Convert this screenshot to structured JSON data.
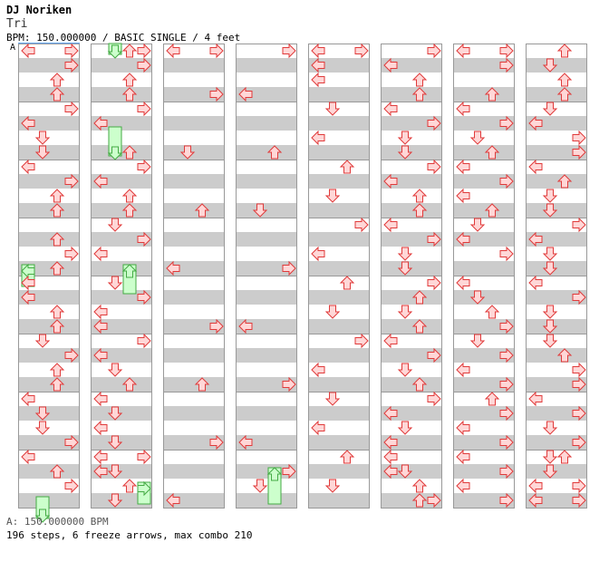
{
  "header": {
    "artist": "DJ Noriken",
    "title": "Tri",
    "meta": "BPM: 150.000000 / BASIC SINGLE / 4 feet",
    "section_marker": "A"
  },
  "footer": {
    "bpm_line": "A: 150.000000 BPM",
    "stats": "196 steps, 6 freeze arrows, max combo 210"
  },
  "colors": {
    "stripe": "#cccccc",
    "grid_line": "#999999",
    "arrow_fill": "#ffd7d7",
    "arrow_stroke": "#e03a3a",
    "freeze_fill": "#ccffcc",
    "freeze_stroke": "#44aa44"
  },
  "chart_data": {
    "type": "step-chart",
    "lanes": [
      "left",
      "down",
      "up",
      "right"
    ],
    "columns": 8,
    "measures_per_column": 8,
    "rows_per_measure": 8,
    "notes": [
      {
        "c": 0,
        "r": 0,
        "lane": "left"
      },
      {
        "c": 0,
        "r": 0,
        "lane": "right"
      },
      {
        "c": 0,
        "r": 2,
        "lane": "right"
      },
      {
        "c": 0,
        "r": 4,
        "lane": "up"
      },
      {
        "c": 0,
        "r": 6,
        "lane": "up"
      },
      {
        "c": 0,
        "r": 8,
        "lane": "right"
      },
      {
        "c": 0,
        "r": 10,
        "lane": "left"
      },
      {
        "c": 0,
        "r": 12,
        "lane": "down"
      },
      {
        "c": 0,
        "r": 14,
        "lane": "down"
      },
      {
        "c": 0,
        "r": 16,
        "lane": "left"
      },
      {
        "c": 0,
        "r": 18,
        "lane": "right"
      },
      {
        "c": 0,
        "r": 20,
        "lane": "up"
      },
      {
        "c": 0,
        "r": 22,
        "lane": "up"
      },
      {
        "c": 0,
        "r": 26,
        "lane": "up"
      },
      {
        "c": 0,
        "r": 28,
        "lane": "right"
      },
      {
        "c": 0,
        "r": 30,
        "lane": "up"
      },
      {
        "c": 0,
        "r": 32,
        "lane": "left"
      },
      {
        "c": 0,
        "r": 34,
        "lane": "left"
      },
      {
        "c": 0,
        "r": 36,
        "lane": "up"
      },
      {
        "c": 0,
        "r": 38,
        "lane": "up"
      },
      {
        "c": 0,
        "r": 40,
        "lane": "down"
      },
      {
        "c": 0,
        "r": 42,
        "lane": "right"
      },
      {
        "c": 0,
        "r": 44,
        "lane": "up"
      },
      {
        "c": 0,
        "r": 46,
        "lane": "up"
      },
      {
        "c": 0,
        "r": 48,
        "lane": "left"
      },
      {
        "c": 0,
        "r": 50,
        "lane": "down"
      },
      {
        "c": 0,
        "r": 52,
        "lane": "down"
      },
      {
        "c": 0,
        "r": 54,
        "lane": "right"
      },
      {
        "c": 0,
        "r": 56,
        "lane": "left"
      },
      {
        "c": 0,
        "r": 58,
        "lane": "up"
      },
      {
        "c": 0,
        "r": 60,
        "lane": "right"
      },
      {
        "c": 1,
        "r": 0,
        "lane": "up"
      },
      {
        "c": 1,
        "r": 0,
        "lane": "right"
      },
      {
        "c": 1,
        "r": 2,
        "lane": "right"
      },
      {
        "c": 1,
        "r": 4,
        "lane": "up"
      },
      {
        "c": 1,
        "r": 6,
        "lane": "up"
      },
      {
        "c": 1,
        "r": 8,
        "lane": "right"
      },
      {
        "c": 1,
        "r": 10,
        "lane": "left"
      },
      {
        "c": 1,
        "r": 14,
        "lane": "up"
      },
      {
        "c": 1,
        "r": 16,
        "lane": "right"
      },
      {
        "c": 1,
        "r": 18,
        "lane": "left"
      },
      {
        "c": 1,
        "r": 20,
        "lane": "up"
      },
      {
        "c": 1,
        "r": 22,
        "lane": "up"
      },
      {
        "c": 1,
        "r": 24,
        "lane": "down"
      },
      {
        "c": 1,
        "r": 26,
        "lane": "right"
      },
      {
        "c": 1,
        "r": 28,
        "lane": "left"
      },
      {
        "c": 1,
        "r": 32,
        "lane": "down"
      },
      {
        "c": 1,
        "r": 34,
        "lane": "right"
      },
      {
        "c": 1,
        "r": 36,
        "lane": "left"
      },
      {
        "c": 1,
        "r": 38,
        "lane": "left"
      },
      {
        "c": 1,
        "r": 40,
        "lane": "right"
      },
      {
        "c": 1,
        "r": 42,
        "lane": "left"
      },
      {
        "c": 1,
        "r": 44,
        "lane": "down"
      },
      {
        "c": 1,
        "r": 46,
        "lane": "up"
      },
      {
        "c": 1,
        "r": 48,
        "lane": "left"
      },
      {
        "c": 1,
        "r": 50,
        "lane": "down"
      },
      {
        "c": 1,
        "r": 52,
        "lane": "left"
      },
      {
        "c": 1,
        "r": 54,
        "lane": "down"
      },
      {
        "c": 1,
        "r": 56,
        "lane": "left"
      },
      {
        "c": 1,
        "r": 56,
        "lane": "right"
      },
      {
        "c": 1,
        "r": 58,
        "lane": "left"
      },
      {
        "c": 1,
        "r": 58,
        "lane": "down"
      },
      {
        "c": 1,
        "r": 60,
        "lane": "up"
      },
      {
        "c": 1,
        "r": 62,
        "lane": "down"
      },
      {
        "c": 2,
        "r": 0,
        "lane": "left"
      },
      {
        "c": 2,
        "r": 0,
        "lane": "right"
      },
      {
        "c": 2,
        "r": 6,
        "lane": "right"
      },
      {
        "c": 2,
        "r": 14,
        "lane": "down"
      },
      {
        "c": 2,
        "r": 22,
        "lane": "up"
      },
      {
        "c": 2,
        "r": 30,
        "lane": "left"
      },
      {
        "c": 2,
        "r": 38,
        "lane": "right"
      },
      {
        "c": 2,
        "r": 46,
        "lane": "up"
      },
      {
        "c": 2,
        "r": 54,
        "lane": "right"
      },
      {
        "c": 2,
        "r": 62,
        "lane": "left"
      },
      {
        "c": 3,
        "r": 0,
        "lane": "right"
      },
      {
        "c": 3,
        "r": 6,
        "lane": "left"
      },
      {
        "c": 3,
        "r": 14,
        "lane": "up"
      },
      {
        "c": 3,
        "r": 22,
        "lane": "down"
      },
      {
        "c": 3,
        "r": 30,
        "lane": "right"
      },
      {
        "c": 3,
        "r": 38,
        "lane": "left"
      },
      {
        "c": 3,
        "r": 46,
        "lane": "right"
      },
      {
        "c": 3,
        "r": 54,
        "lane": "left"
      },
      {
        "c": 3,
        "r": 58,
        "lane": "right"
      },
      {
        "c": 3,
        "r": 60,
        "lane": "down"
      },
      {
        "c": 4,
        "r": 0,
        "lane": "left"
      },
      {
        "c": 4,
        "r": 0,
        "lane": "right"
      },
      {
        "c": 4,
        "r": 2,
        "lane": "left"
      },
      {
        "c": 4,
        "r": 4,
        "lane": "left"
      },
      {
        "c": 4,
        "r": 8,
        "lane": "down"
      },
      {
        "c": 4,
        "r": 12,
        "lane": "left"
      },
      {
        "c": 4,
        "r": 16,
        "lane": "up"
      },
      {
        "c": 4,
        "r": 20,
        "lane": "down"
      },
      {
        "c": 4,
        "r": 24,
        "lane": "right"
      },
      {
        "c": 4,
        "r": 28,
        "lane": "left"
      },
      {
        "c": 4,
        "r": 32,
        "lane": "up"
      },
      {
        "c": 4,
        "r": 36,
        "lane": "down"
      },
      {
        "c": 4,
        "r": 40,
        "lane": "right"
      },
      {
        "c": 4,
        "r": 44,
        "lane": "left"
      },
      {
        "c": 4,
        "r": 48,
        "lane": "down"
      },
      {
        "c": 4,
        "r": 52,
        "lane": "left"
      },
      {
        "c": 4,
        "r": 56,
        "lane": "up"
      },
      {
        "c": 4,
        "r": 60,
        "lane": "down"
      },
      {
        "c": 5,
        "r": 0,
        "lane": "right"
      },
      {
        "c": 5,
        "r": 2,
        "lane": "left"
      },
      {
        "c": 5,
        "r": 4,
        "lane": "up"
      },
      {
        "c": 5,
        "r": 6,
        "lane": "up"
      },
      {
        "c": 5,
        "r": 8,
        "lane": "left"
      },
      {
        "c": 5,
        "r": 10,
        "lane": "right"
      },
      {
        "c": 5,
        "r": 12,
        "lane": "down"
      },
      {
        "c": 5,
        "r": 14,
        "lane": "down"
      },
      {
        "c": 5,
        "r": 16,
        "lane": "right"
      },
      {
        "c": 5,
        "r": 18,
        "lane": "left"
      },
      {
        "c": 5,
        "r": 20,
        "lane": "up"
      },
      {
        "c": 5,
        "r": 22,
        "lane": "up"
      },
      {
        "c": 5,
        "r": 24,
        "lane": "left"
      },
      {
        "c": 5,
        "r": 26,
        "lane": "right"
      },
      {
        "c": 5,
        "r": 28,
        "lane": "down"
      },
      {
        "c": 5,
        "r": 30,
        "lane": "down"
      },
      {
        "c": 5,
        "r": 32,
        "lane": "right"
      },
      {
        "c": 5,
        "r": 34,
        "lane": "up"
      },
      {
        "c": 5,
        "r": 36,
        "lane": "down"
      },
      {
        "c": 5,
        "r": 38,
        "lane": "up"
      },
      {
        "c": 5,
        "r": 40,
        "lane": "left"
      },
      {
        "c": 5,
        "r": 42,
        "lane": "right"
      },
      {
        "c": 5,
        "r": 44,
        "lane": "down"
      },
      {
        "c": 5,
        "r": 46,
        "lane": "up"
      },
      {
        "c": 5,
        "r": 48,
        "lane": "right"
      },
      {
        "c": 5,
        "r": 50,
        "lane": "left"
      },
      {
        "c": 5,
        "r": 52,
        "lane": "down"
      },
      {
        "c": 5,
        "r": 54,
        "lane": "left"
      },
      {
        "c": 5,
        "r": 56,
        "lane": "left"
      },
      {
        "c": 5,
        "r": 58,
        "lane": "left"
      },
      {
        "c": 5,
        "r": 58,
        "lane": "down"
      },
      {
        "c": 5,
        "r": 60,
        "lane": "up"
      },
      {
        "c": 5,
        "r": 62,
        "lane": "up"
      },
      {
        "c": 5,
        "r": 62,
        "lane": "right"
      },
      {
        "c": 6,
        "r": 0,
        "lane": "left"
      },
      {
        "c": 6,
        "r": 0,
        "lane": "right"
      },
      {
        "c": 6,
        "r": 2,
        "lane": "right"
      },
      {
        "c": 6,
        "r": 6,
        "lane": "up"
      },
      {
        "c": 6,
        "r": 8,
        "lane": "left"
      },
      {
        "c": 6,
        "r": 10,
        "lane": "right"
      },
      {
        "c": 6,
        "r": 12,
        "lane": "down"
      },
      {
        "c": 6,
        "r": 14,
        "lane": "up"
      },
      {
        "c": 6,
        "r": 16,
        "lane": "left"
      },
      {
        "c": 6,
        "r": 18,
        "lane": "right"
      },
      {
        "c": 6,
        "r": 20,
        "lane": "left"
      },
      {
        "c": 6,
        "r": 22,
        "lane": "up"
      },
      {
        "c": 6,
        "r": 24,
        "lane": "down"
      },
      {
        "c": 6,
        "r": 26,
        "lane": "left"
      },
      {
        "c": 6,
        "r": 28,
        "lane": "right"
      },
      {
        "c": 6,
        "r": 32,
        "lane": "left"
      },
      {
        "c": 6,
        "r": 34,
        "lane": "down"
      },
      {
        "c": 6,
        "r": 36,
        "lane": "up"
      },
      {
        "c": 6,
        "r": 38,
        "lane": "right"
      },
      {
        "c": 6,
        "r": 40,
        "lane": "down"
      },
      {
        "c": 6,
        "r": 42,
        "lane": "right"
      },
      {
        "c": 6,
        "r": 44,
        "lane": "left"
      },
      {
        "c": 6,
        "r": 46,
        "lane": "right"
      },
      {
        "c": 6,
        "r": 48,
        "lane": "up"
      },
      {
        "c": 6,
        "r": 50,
        "lane": "right"
      },
      {
        "c": 6,
        "r": 52,
        "lane": "left"
      },
      {
        "c": 6,
        "r": 54,
        "lane": "right"
      },
      {
        "c": 6,
        "r": 56,
        "lane": "left"
      },
      {
        "c": 6,
        "r": 58,
        "lane": "right"
      },
      {
        "c": 6,
        "r": 60,
        "lane": "left"
      },
      {
        "c": 6,
        "r": 62,
        "lane": "right"
      },
      {
        "c": 7,
        "r": 0,
        "lane": "up"
      },
      {
        "c": 7,
        "r": 2,
        "lane": "down"
      },
      {
        "c": 7,
        "r": 4,
        "lane": "up"
      },
      {
        "c": 7,
        "r": 6,
        "lane": "up"
      },
      {
        "c": 7,
        "r": 8,
        "lane": "down"
      },
      {
        "c": 7,
        "r": 10,
        "lane": "left"
      },
      {
        "c": 7,
        "r": 12,
        "lane": "right"
      },
      {
        "c": 7,
        "r": 14,
        "lane": "right"
      },
      {
        "c": 7,
        "r": 16,
        "lane": "left"
      },
      {
        "c": 7,
        "r": 18,
        "lane": "up"
      },
      {
        "c": 7,
        "r": 20,
        "lane": "down"
      },
      {
        "c": 7,
        "r": 22,
        "lane": "down"
      },
      {
        "c": 7,
        "r": 24,
        "lane": "right"
      },
      {
        "c": 7,
        "r": 26,
        "lane": "left"
      },
      {
        "c": 7,
        "r": 28,
        "lane": "down"
      },
      {
        "c": 7,
        "r": 30,
        "lane": "down"
      },
      {
        "c": 7,
        "r": 32,
        "lane": "left"
      },
      {
        "c": 7,
        "r": 34,
        "lane": "right"
      },
      {
        "c": 7,
        "r": 36,
        "lane": "down"
      },
      {
        "c": 7,
        "r": 38,
        "lane": "down"
      },
      {
        "c": 7,
        "r": 40,
        "lane": "down"
      },
      {
        "c": 7,
        "r": 42,
        "lane": "up"
      },
      {
        "c": 7,
        "r": 44,
        "lane": "right"
      },
      {
        "c": 7,
        "r": 46,
        "lane": "right"
      },
      {
        "c": 7,
        "r": 48,
        "lane": "left"
      },
      {
        "c": 7,
        "r": 50,
        "lane": "right"
      },
      {
        "c": 7,
        "r": 52,
        "lane": "down"
      },
      {
        "c": 7,
        "r": 54,
        "lane": "right"
      },
      {
        "c": 7,
        "r": 56,
        "lane": "down"
      },
      {
        "c": 7,
        "r": 56,
        "lane": "up"
      },
      {
        "c": 7,
        "r": 58,
        "lane": "down"
      },
      {
        "c": 7,
        "r": 60,
        "lane": "left"
      },
      {
        "c": 7,
        "r": 60,
        "lane": "right"
      },
      {
        "c": 7,
        "r": 62,
        "lane": "left"
      },
      {
        "c": 7,
        "r": 62,
        "lane": "right"
      }
    ],
    "freezes": [
      {
        "c": 1,
        "lane": "down",
        "r0": -1,
        "r1": 0
      },
      {
        "c": 1,
        "lane": "down",
        "r0": 11,
        "r1": 14
      },
      {
        "c": 0,
        "lane": "left",
        "r0": 30,
        "r1": 32
      },
      {
        "c": 1,
        "lane": "up",
        "r0": 30,
        "r1": 33
      },
      {
        "c": 0,
        "lane": "down",
        "r0": 62,
        "r1": 64
      },
      {
        "c": 1,
        "lane": "right",
        "r0": 60,
        "r1": 62
      },
      {
        "c": 3,
        "lane": "up",
        "r0": 58,
        "r1": 62
      }
    ]
  }
}
